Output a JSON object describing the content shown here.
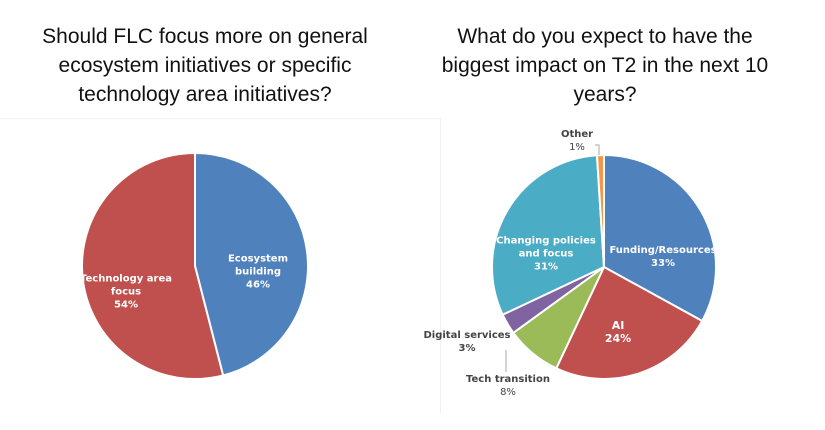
{
  "chart_data": [
    {
      "type": "pie",
      "title": "Should FLC focus more on general ecosystem initiatives or specific technology area initiatives?",
      "slices": [
        {
          "label": "Ecosystem building",
          "value": 46,
          "pct": "46%",
          "color": "#4f81bd"
        },
        {
          "label": "Technology area focus",
          "value": 54,
          "pct": "54%",
          "color": "#c0504d"
        }
      ]
    },
    {
      "type": "pie",
      "title": "What do you expect to have the biggest impact on T2 in the next 10 years?",
      "slices": [
        {
          "label": "Funding/Resources",
          "value": 33,
          "pct": "33%",
          "color": "#4f81bd"
        },
        {
          "label": "AI",
          "value": 24,
          "pct": "24%",
          "color": "#c0504d"
        },
        {
          "label": "Tech transition",
          "value": 8,
          "pct": "8%",
          "color": "#9bbb59"
        },
        {
          "label": "Digital services",
          "value": 3,
          "pct": "3%",
          "color": "#8064a2"
        },
        {
          "label": "Changing policies and focus",
          "value": 31,
          "pct": "31%",
          "color": "#4bacc6"
        },
        {
          "label": "Other",
          "value": 1,
          "pct": "1%",
          "color": "#f79646"
        }
      ]
    }
  ]
}
